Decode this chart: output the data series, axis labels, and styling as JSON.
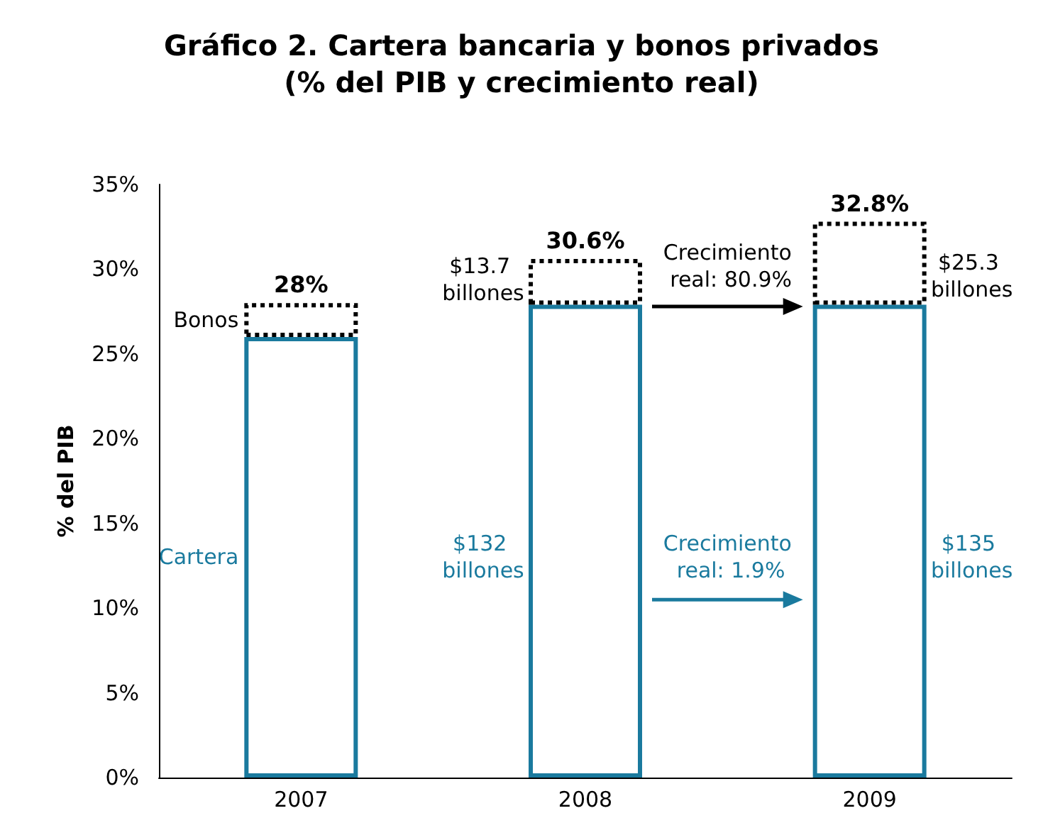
{
  "chart_data": {
    "type": "bar",
    "title": "Gráfico 2. Cartera bancaria y bonos privados\n(% del PIB y crecimiento real)",
    "ylabel": "% del PIB",
    "categories": [
      "2007",
      "2008",
      "2009"
    ],
    "stacked": true,
    "series": [
      {
        "name": "Cartera",
        "color": "#1a7a9e",
        "line_style": "solid",
        "values": [
          26.0,
          27.9,
          27.9
        ]
      },
      {
        "name": "Bonos",
        "color": "#000000",
        "line_style": "dotted",
        "values": [
          2.0,
          2.7,
          4.9
        ]
      }
    ],
    "totals": [
      "28%",
      "30.6%",
      "32.8%"
    ],
    "ylim": [
      0,
      35
    ],
    "yticks": [
      {
        "value": 0,
        "label": "0%"
      },
      {
        "value": 5,
        "label": "5%"
      },
      {
        "value": 10,
        "label": "10%"
      },
      {
        "value": 15,
        "label": "15%"
      },
      {
        "value": 20,
        "label": "20%"
      },
      {
        "value": 25,
        "label": "25%"
      },
      {
        "value": 30,
        "label": "30%"
      },
      {
        "value": 35,
        "label": "35%"
      }
    ],
    "grid": false,
    "legend": false,
    "annotations": [
      "$13.7 billones",
      "Crecimiento real: 80.9%",
      "$25.3 billones",
      "$132 billones",
      "Crecimiento real: 1.9%",
      "$135 billones"
    ]
  }
}
